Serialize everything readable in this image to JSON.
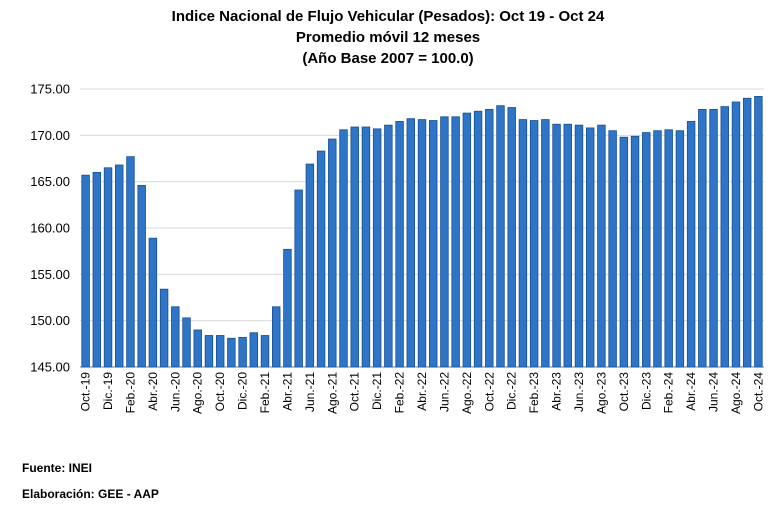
{
  "titles": {
    "line1": "Indice Nacional  de Flujo Vehicular (Pesados):  Oct 19 - Oct 24",
    "line2": "Promedio móvil 12 meses",
    "line3": "(Año Base 2007 = 100.0)"
  },
  "footer": {
    "source": "Fuente: INEI",
    "credit": "Elaboración: GEE - AAP"
  },
  "colors": {
    "bar_fill": "#2E75C8",
    "bar_edge": "#1A4F8F",
    "grid": "#D9D9D9"
  },
  "chart_data": {
    "type": "bar",
    "title": "Indice Nacional  de Flujo Vehicular (Pesados):  Oct 19 - Oct 24",
    "subtitle": "Promedio móvil 12 meses (Año Base 2007 = 100.0)",
    "xlabel": "",
    "ylabel": "",
    "ylim": [
      145,
      175
    ],
    "yticks": [
      "145.00",
      "150.00",
      "155.00",
      "160.00",
      "165.00",
      "170.00",
      "175.00"
    ],
    "grid": true,
    "categories": [
      "Oct.-19",
      "Nov.-19",
      "Dic.-19",
      "Ene.-20",
      "Feb.-20",
      "Mar.-20",
      "Abr.-20",
      "May.-20",
      "Jun.-20",
      "Jul.-20",
      "Ago.-20",
      "Set.-20",
      "Oct.-20",
      "Nov.-20",
      "Dic.-20",
      "Ene.-21",
      "Feb.-21",
      "Mar.-21",
      "Abr.-21",
      "May.-21",
      "Jun.-21",
      "Jul.-21",
      "Ago.-21",
      "Set.-21",
      "Oct.-21",
      "Nov.-21",
      "Dic.-21",
      "Ene.-22",
      "Feb.-22",
      "Mar.-22",
      "Abr.-22",
      "May.-22",
      "Jun.-22",
      "Jul.-22",
      "Ago.-22",
      "Set.-22",
      "Oct.-22",
      "Nov.-22",
      "Dic.-22",
      "Ene.-23",
      "Feb.-23",
      "Mar.-23",
      "Abr.-23",
      "May.-23",
      "Jun.-23",
      "Jul.-23",
      "Ago.-23",
      "Set.-23",
      "Oct.-23",
      "Nov.-23",
      "Dic.-23",
      "Ene.-24",
      "Feb.-24",
      "Mar.-24",
      "Abr.-24",
      "May.-24",
      "Jun.-24",
      "Jul.-24",
      "Ago.-24",
      "Set.-24",
      "Oct.-24"
    ],
    "tick_labels": [
      "Oct.-19",
      "Dic.-19",
      "Feb.-20",
      "Abr.-20",
      "Jun.-20",
      "Ago.-20",
      "Oct.-20",
      "Dic.-20",
      "Feb.-21",
      "Abr.-21",
      "Jun.-21",
      "Ago.-21",
      "Oct.-21",
      "Dic.-21",
      "Feb.-22",
      "Abr.-22",
      "Jun.-22",
      "Ago.-22",
      "Oct.-22",
      "Dic.-22",
      "Feb.-23",
      "Abr.-23",
      "Jun.-23",
      "Ago.-23",
      "Oct.-23",
      "Dic.-23",
      "Feb.-24",
      "Abr.-24",
      "Jun.-24",
      "Ago.-24",
      "Oct.-24"
    ],
    "values": [
      165.7,
      166.0,
      166.5,
      166.8,
      167.7,
      164.6,
      158.9,
      153.4,
      151.5,
      150.3,
      149.0,
      148.4,
      148.4,
      148.1,
      148.2,
      148.7,
      148.4,
      151.5,
      157.7,
      164.1,
      166.9,
      168.3,
      169.6,
      170.6,
      170.9,
      170.9,
      170.7,
      171.1,
      171.5,
      171.8,
      171.7,
      171.6,
      172.0,
      172.0,
      172.4,
      172.6,
      172.8,
      173.2,
      173.0,
      171.7,
      171.6,
      171.7,
      171.2,
      171.2,
      171.1,
      170.8,
      171.1,
      170.5,
      169.8,
      169.9,
      170.3,
      170.5,
      170.6,
      170.5,
      171.5,
      172.8,
      172.8,
      173.1,
      173.6,
      174.0,
      174.2
    ]
  }
}
